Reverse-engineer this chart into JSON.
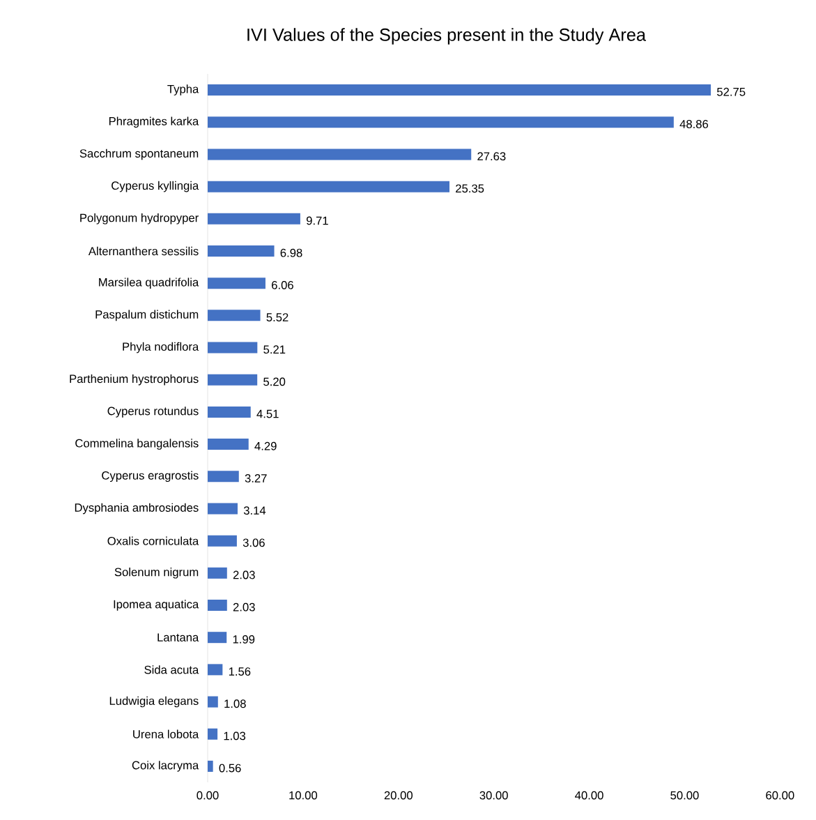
{
  "chart_data": {
    "type": "bar",
    "orientation": "horizontal",
    "title": "IVI Values of the Species present in the Study Area",
    "categories": [
      "Typha",
      "Phragmites karka",
      "Sacchrum spontaneum",
      "Cyperus kyllingia",
      "Polygonum hydropyper",
      "Alternanthera sessilis",
      "Marsilea quadrifolia",
      "Paspalum distichum",
      "Phyla nodiflora",
      "Parthenium hystrophorus",
      "Cyperus rotundus",
      "Commelina bangalensis",
      "Cyperus eragrostis",
      "Dysphania ambrosiodes",
      "Oxalis corniculata",
      "Solenum nigrum",
      "Ipomea aquatica",
      "Lantana",
      "Sida acuta",
      "Ludwigia elegans",
      "Urena lobota",
      "Coix lacryma"
    ],
    "values": [
      52.75,
      48.86,
      27.63,
      25.35,
      9.71,
      6.98,
      6.06,
      5.52,
      5.21,
      5.2,
      4.51,
      4.29,
      3.27,
      3.14,
      3.06,
      2.03,
      2.03,
      1.99,
      1.56,
      1.08,
      1.03,
      0.56
    ],
    "value_labels": [
      "52.75",
      "48.86",
      "27.63",
      "25.35",
      "9.71",
      "6.98",
      "6.06",
      "5.52",
      "5.21",
      "5.20",
      "4.51",
      "4.29",
      "3.27",
      "3.14",
      "3.06",
      "2.03",
      "2.03",
      "1.99",
      "1.56",
      "1.08",
      "1.03",
      "0.56"
    ],
    "color": "#4472c4",
    "xlim": [
      0,
      60
    ],
    "xticks": [
      {
        "value": 0,
        "label": "0.00"
      },
      {
        "value": 10,
        "label": "10.00"
      },
      {
        "value": 20,
        "label": "20.00"
      },
      {
        "value": 30,
        "label": "30.00"
      },
      {
        "value": 40,
        "label": "40.00"
      },
      {
        "value": 50,
        "label": "50.00"
      },
      {
        "value": 60,
        "label": "60.00"
      }
    ]
  }
}
